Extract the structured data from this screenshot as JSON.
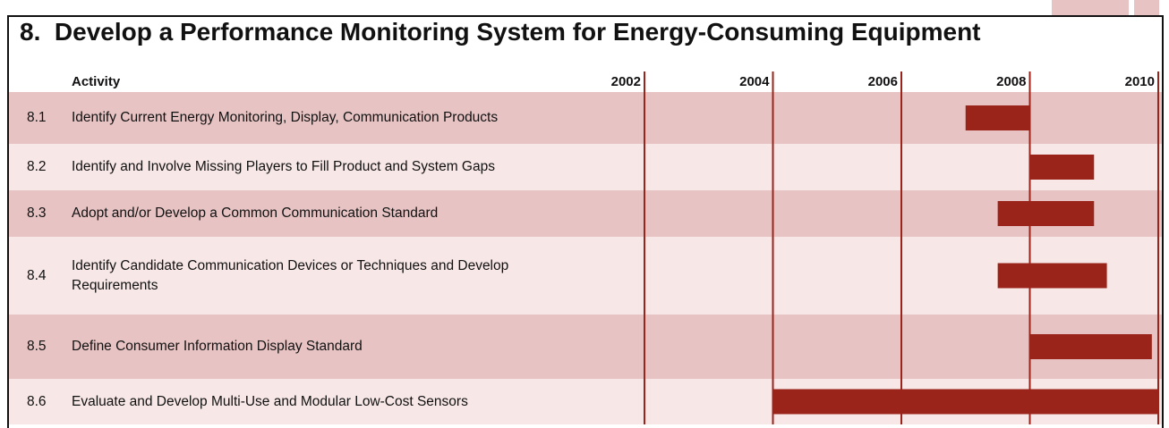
{
  "chart_data": {
    "type": "gantt",
    "title": "8.  Develop a Performance Monitoring System for Energy-Consuming Equipment",
    "column_header": "Activity",
    "xlim": [
      2002,
      2010
    ],
    "xticks": [
      2002,
      2004,
      2006,
      2008,
      2010
    ],
    "color": "#9b241a",
    "tasks": [
      {
        "id": "8.1",
        "name": "Identify Current Energy Monitoring, Display, Communication Products",
        "start": 2007,
        "end": 2008
      },
      {
        "id": "8.2",
        "name": "Identify and Involve Missing Players to Fill Product and System Gaps",
        "start": 2008,
        "end": 2009
      },
      {
        "id": "8.3",
        "name": "Adopt and/or Develop a Common Communication Standard",
        "start": 2007.5,
        "end": 2009
      },
      {
        "id": "8.4",
        "name": "Identify Candidate Communication Devices or Techniques and Develop\nRequirements",
        "start": 2007.5,
        "end": 2009.2
      },
      {
        "id": "8.5",
        "name": "Define Consumer Information Display Standard",
        "start": 2008,
        "end": 2009.9
      },
      {
        "id": "8.6",
        "name": "Evaluate and Develop Multi-Use and Modular Low-Cost Sensors",
        "start": 2004,
        "end": 2010
      }
    ]
  }
}
